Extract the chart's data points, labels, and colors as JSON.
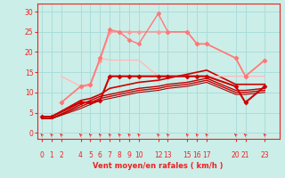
{
  "bg_color": "#cceee8",
  "grid_color": "#aaddda",
  "text_color": "#ee2222",
  "xlabel": "Vent moyen/en rafales ( km/h )",
  "xticks": [
    0,
    1,
    2,
    4,
    5,
    6,
    7,
    8,
    9,
    10,
    12,
    13,
    15,
    16,
    17,
    20,
    21,
    23
  ],
  "yticks": [
    0,
    5,
    10,
    15,
    20,
    25,
    30
  ],
  "ylim": [
    -1.5,
    32
  ],
  "xlim": [
    -0.5,
    24.5
  ],
  "lines": [
    {
      "x": [
        0,
        1,
        4,
        5,
        6,
        7,
        8,
        9,
        10,
        12,
        13,
        15,
        16,
        17,
        20,
        21,
        23
      ],
      "y": [
        4,
        4,
        7.5,
        7.5,
        8,
        14,
        14,
        14,
        14,
        14,
        14,
        14,
        14,
        14,
        11.5,
        7.5,
        11.5
      ],
      "color": "#cc0000",
      "lw": 1.5,
      "marker": "D",
      "ms": 2.5,
      "zorder": 5
    },
    {
      "x": [
        0,
        1,
        4,
        5,
        6,
        7,
        8,
        9,
        10,
        12,
        13,
        15,
        16,
        17,
        20,
        21,
        23
      ],
      "y": [
        4,
        4,
        8,
        8.5,
        9.5,
        11,
        11.5,
        12,
        12.5,
        13,
        13.5,
        14.5,
        15,
        15.5,
        12,
        12,
        12
      ],
      "color": "#cc0000",
      "lw": 1.2,
      "marker": null,
      "ms": 0,
      "zorder": 4
    },
    {
      "x": [
        0,
        1,
        4,
        5,
        6,
        7,
        8,
        9,
        10,
        12,
        13,
        15,
        16,
        17,
        20,
        21,
        23
      ],
      "y": [
        3.5,
        3.5,
        7,
        8,
        9,
        9.5,
        10,
        10.5,
        11,
        11.5,
        12,
        12.5,
        13,
        13.5,
        10.5,
        10.5,
        11
      ],
      "color": "#bb0000",
      "lw": 1.0,
      "marker": null,
      "ms": 0,
      "zorder": 3
    },
    {
      "x": [
        0,
        1,
        4,
        5,
        6,
        7,
        8,
        9,
        10,
        12,
        13,
        15,
        16,
        17,
        20,
        21,
        23
      ],
      "y": [
        3.5,
        3.5,
        6.5,
        7.5,
        8.5,
        9,
        9.5,
        10,
        10.5,
        11,
        11.5,
        12,
        12.5,
        13,
        10,
        10,
        10.5
      ],
      "color": "#cc0000",
      "lw": 1.0,
      "marker": null,
      "ms": 0,
      "zorder": 3
    },
    {
      "x": [
        0,
        1,
        4,
        5,
        6,
        7,
        8,
        9,
        10,
        12,
        13,
        15,
        16,
        17,
        20,
        21,
        23
      ],
      "y": [
        3.5,
        3.5,
        6,
        7,
        8,
        8.5,
        9,
        9.5,
        10,
        10.5,
        11,
        11.5,
        12,
        12.5,
        9.5,
        9.5,
        10
      ],
      "color": "#aa0000",
      "lw": 0.8,
      "marker": null,
      "ms": 0,
      "zorder": 3
    },
    {
      "x": [
        2,
        4,
        5,
        6,
        7,
        8,
        9,
        10,
        12,
        13,
        15,
        16,
        17,
        20,
        21,
        23
      ],
      "y": [
        7.5,
        11.5,
        12,
        18,
        25,
        25,
        25,
        25,
        25,
        25,
        25,
        22,
        22,
        18.5,
        14,
        18
      ],
      "color": "#ff9999",
      "lw": 1.2,
      "marker": "D",
      "ms": 2.5,
      "zorder": 6
    },
    {
      "x": [
        2,
        4,
        5,
        6,
        7,
        8,
        9,
        10,
        12,
        13,
        15,
        16,
        17,
        20,
        21,
        23
      ],
      "y": [
        7.5,
        11.5,
        12,
        18.5,
        25.5,
        25,
        23,
        22,
        29.5,
        25,
        25,
        22,
        22,
        18.5,
        14,
        18
      ],
      "color": "#ff7777",
      "lw": 1.0,
      "marker": "D",
      "ms": 2.5,
      "zorder": 6
    },
    {
      "x": [
        2,
        4,
        5,
        6,
        7,
        8,
        9,
        10,
        12,
        13,
        15,
        16,
        17,
        20,
        21,
        23
      ],
      "y": [
        14,
        11.5,
        11.5,
        18.5,
        18,
        18,
        18,
        18,
        14,
        14,
        14,
        14,
        14,
        14,
        14,
        14
      ],
      "color": "#ffbbbb",
      "lw": 1.0,
      "marker": null,
      "ms": 0,
      "zorder": 4
    }
  ]
}
